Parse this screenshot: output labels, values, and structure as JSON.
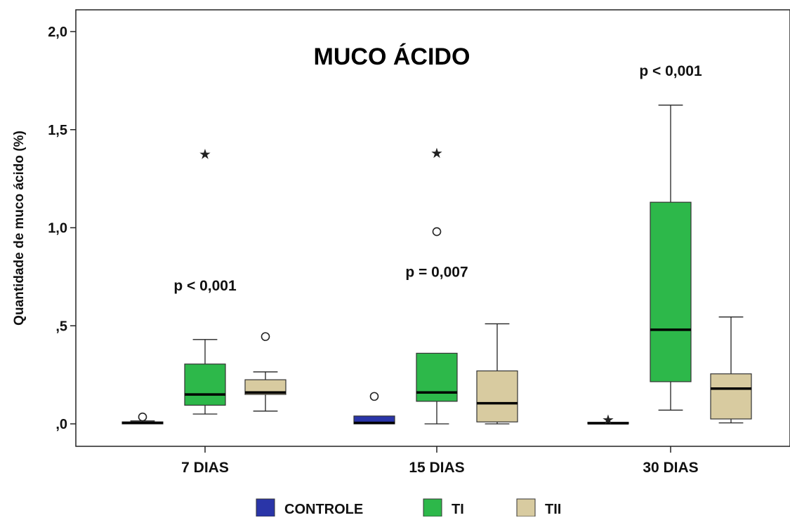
{
  "chart_data": {
    "type": "boxplot",
    "title": "MUCO ÁCIDO",
    "xlabel": "",
    "ylabel": "Quantidade de muco ácido (%)",
    "ylim": [
      -0.11,
      2.12
    ],
    "y_ticks": [
      0,
      0.5,
      1.0,
      1.5,
      2.0
    ],
    "y_tick_labels": [
      ",0",
      ",5",
      "1,0",
      "1,5",
      "2,0"
    ],
    "categories": [
      "7 DIAS",
      "15 DIAS",
      "30 DIAS"
    ],
    "legend_position": "bottom",
    "grid": false,
    "series": [
      {
        "name": "CONTROLE",
        "color": "#2a35a8",
        "boxes": [
          {
            "min": 0.0,
            "q1": 0.0,
            "median": 0.005,
            "q3": 0.01,
            "max": 0.015,
            "outliers": [
              {
                "value": 0.035,
                "marker": "circle"
              }
            ]
          },
          {
            "min": 0.0,
            "q1": 0.0,
            "median": 0.005,
            "q3": 0.04,
            "max": 0.04,
            "outliers": [
              {
                "value": 0.14,
                "marker": "circle"
              }
            ]
          },
          {
            "min": 0.0,
            "q1": 0.0,
            "median": 0.003,
            "q3": 0.008,
            "max": 0.008,
            "outliers": [
              {
                "value": 0.025,
                "marker": "star"
              }
            ]
          }
        ]
      },
      {
        "name": "TI",
        "color": "#2db84a",
        "boxes": [
          {
            "min": 0.05,
            "q1": 0.095,
            "median": 0.15,
            "q3": 0.305,
            "max": 0.43,
            "outliers": [
              {
                "value": 1.38,
                "marker": "star"
              }
            ]
          },
          {
            "min": 0.0,
            "q1": 0.115,
            "median": 0.16,
            "q3": 0.36,
            "max": 0.36,
            "outliers": [
              {
                "value": 0.98,
                "marker": "circle"
              },
              {
                "value": 1.385,
                "marker": "star"
              }
            ]
          },
          {
            "min": 0.07,
            "q1": 0.215,
            "median": 0.48,
            "q3": 1.13,
            "max": 1.625,
            "outliers": []
          }
        ]
      },
      {
        "name": "TII",
        "color": "#d8cba0",
        "boxes": [
          {
            "min": 0.065,
            "q1": 0.15,
            "median": 0.16,
            "q3": 0.225,
            "max": 0.265,
            "outliers": [
              {
                "value": 0.445,
                "marker": "circle"
              }
            ]
          },
          {
            "min": 0.0,
            "q1": 0.01,
            "median": 0.105,
            "q3": 0.27,
            "max": 0.51,
            "outliers": []
          },
          {
            "min": 0.005,
            "q1": 0.025,
            "median": 0.18,
            "q3": 0.255,
            "max": 0.545,
            "outliers": []
          }
        ]
      }
    ],
    "annotations": [
      {
        "text": "p < 0,001",
        "category": "7 DIAS",
        "y": 0.705
      },
      {
        "text": "p = 0,007",
        "category": "15 DIAS",
        "y": 0.775
      },
      {
        "text": "p < 0,001",
        "category": "30 DIAS",
        "y": 1.8
      }
    ]
  }
}
